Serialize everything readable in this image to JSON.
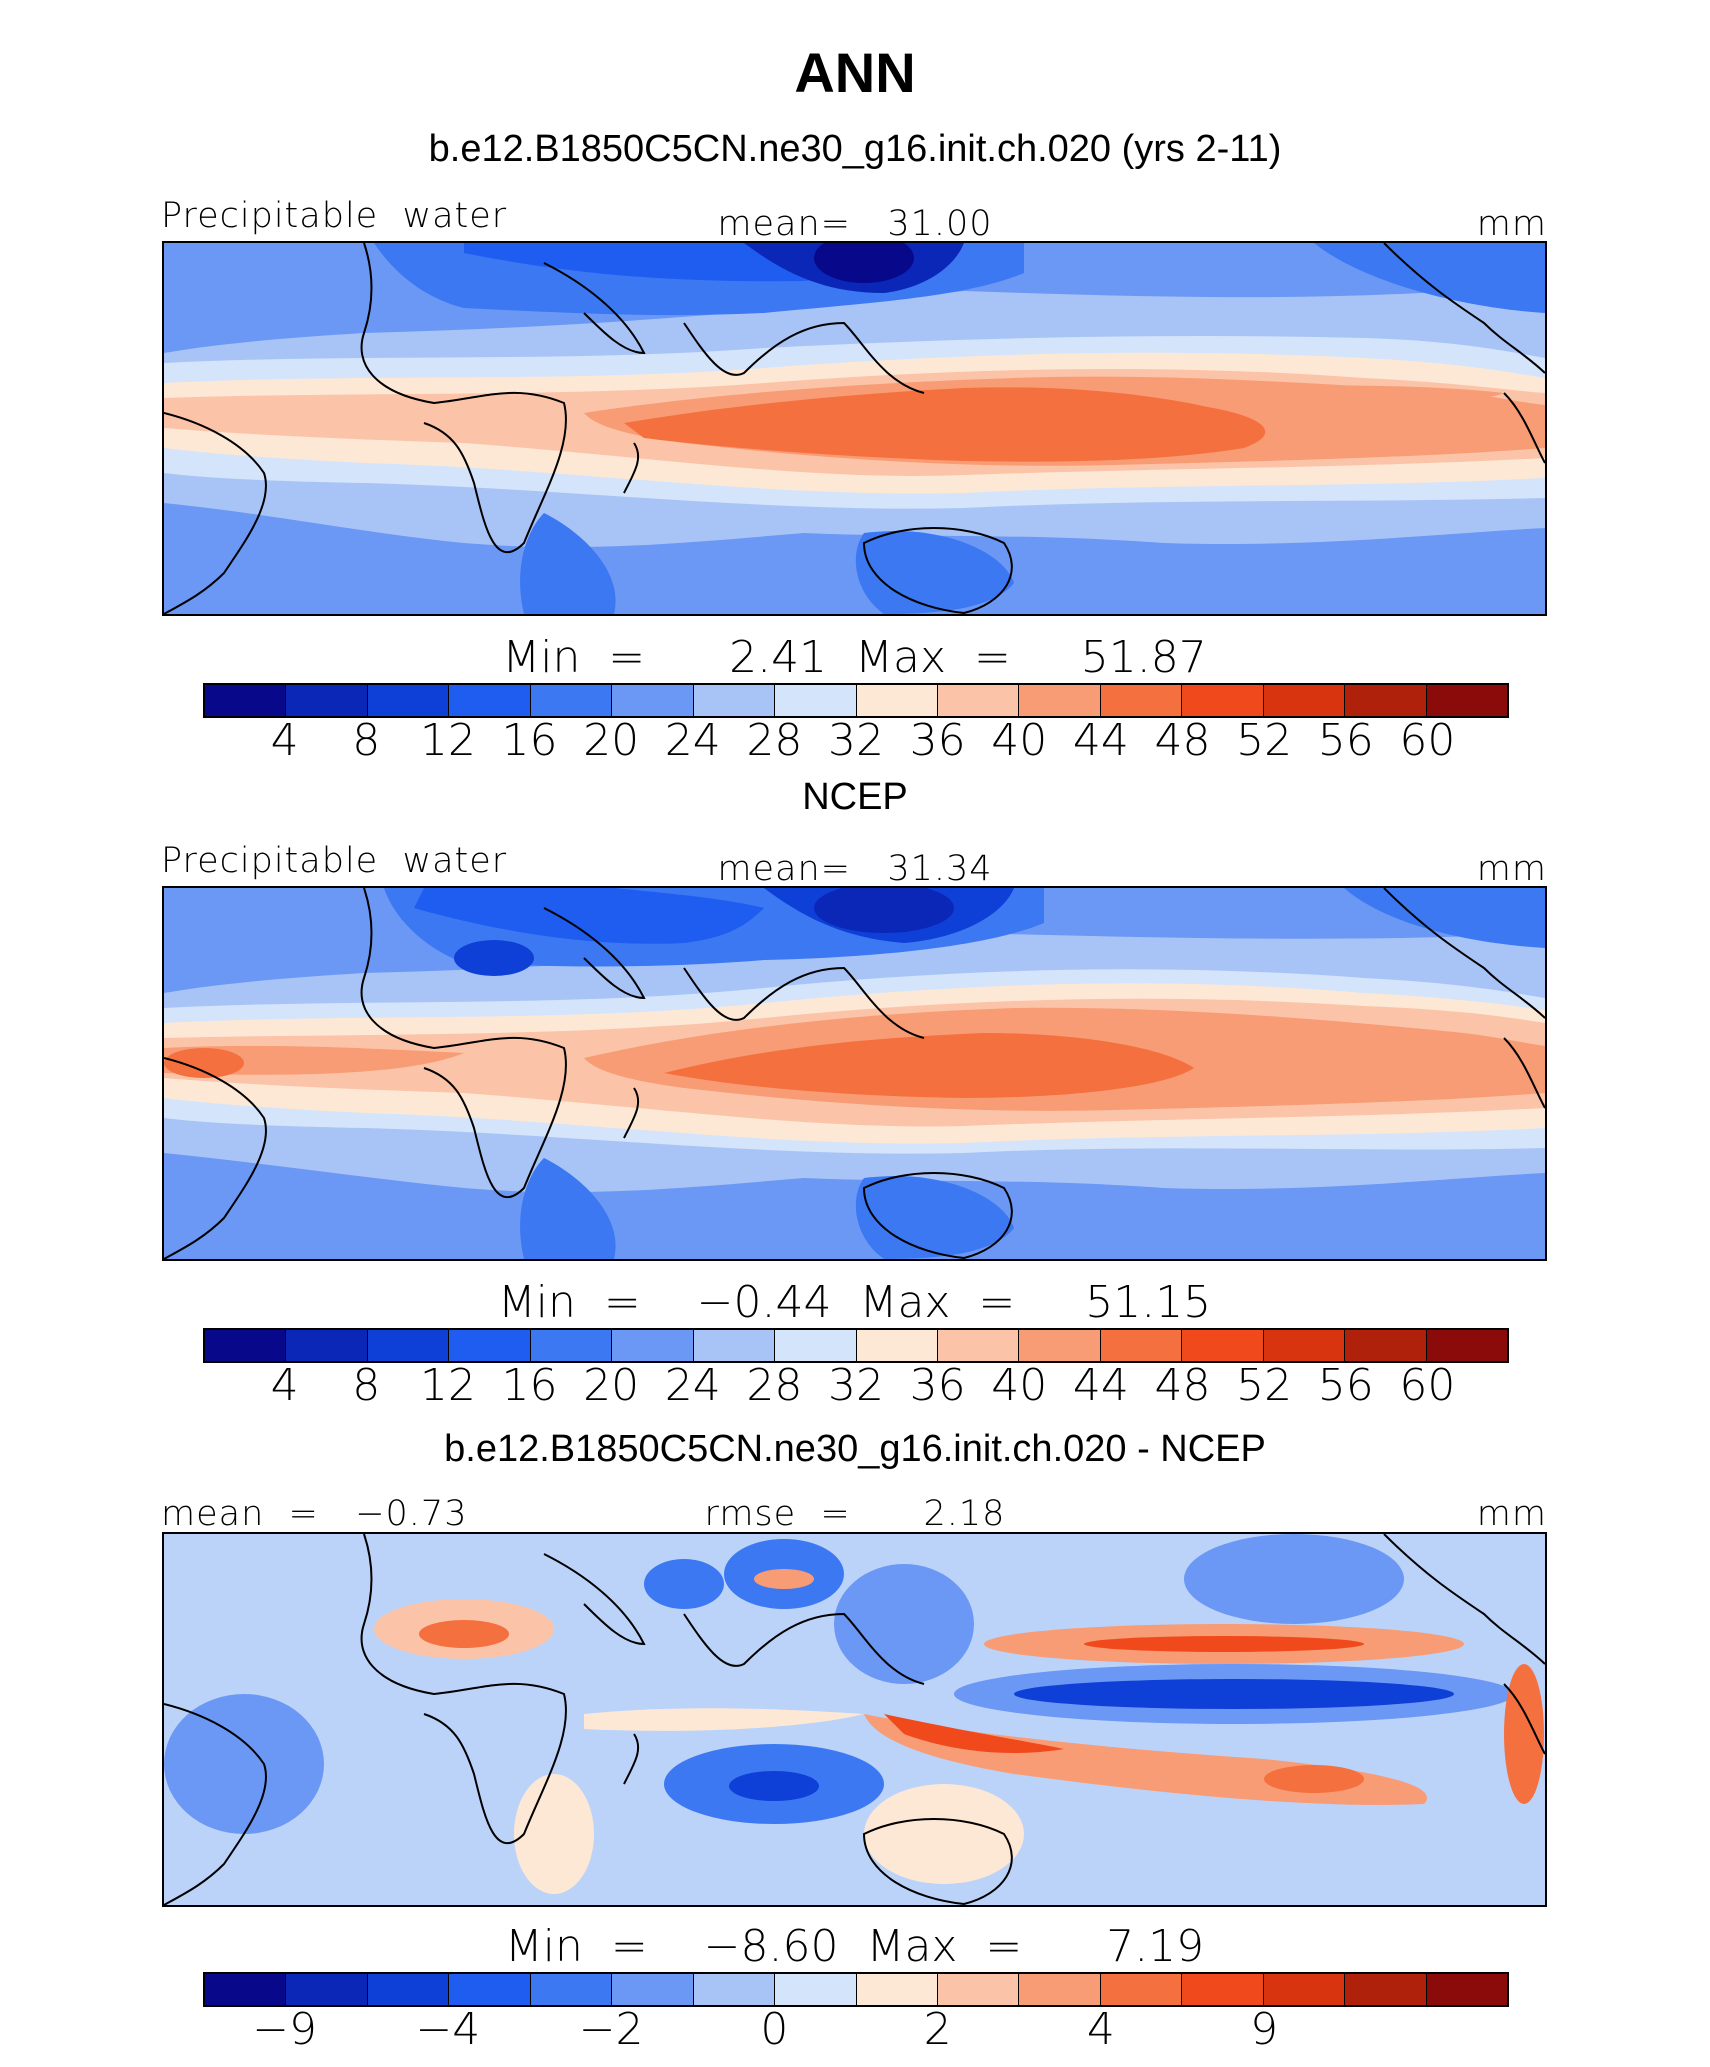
{
  "figure": {
    "title": "ANN",
    "colors": [
      "#08088a",
      "#0a27b8",
      "#0e3fd6",
      "#1f5cf0",
      "#3b78f2",
      "#6b98f4",
      "#a8c4f7",
      "#d4e4fb",
      "#fde8d6",
      "#fbc4a8",
      "#f89c76",
      "#f5703f",
      "#f04a1c",
      "#d93410",
      "#b0210b",
      "#8b0a0a"
    ]
  },
  "panels": [
    {
      "subtitle": "b.e12.B1850C5CN.ne30_g16.init.ch.020 (yrs 2-11)",
      "left_label": "Precipitable  water",
      "center_label": "mean=   31.00",
      "right_label": "mm",
      "stats": "Min  =      2.41  Max  =     51.87",
      "tick_labels": [
        "4",
        "8",
        "12",
        "16",
        "20",
        "24",
        "28",
        "32",
        "36",
        "40",
        "44",
        "48",
        "52",
        "56",
        "60"
      ]
    },
    {
      "subtitle": "NCEP",
      "left_label": "Precipitable  water",
      "center_label": "mean=   31.34",
      "right_label": "mm",
      "stats": "Min  =    −0.44  Max  =     51.15",
      "tick_labels": [
        "4",
        "8",
        "12",
        "16",
        "20",
        "24",
        "28",
        "32",
        "36",
        "40",
        "44",
        "48",
        "52",
        "56",
        "60"
      ]
    },
    {
      "subtitle": "b.e12.B1850C5CN.ne30_g16.init.ch.020 - NCEP",
      "left_label": "mean  =   −0.73",
      "center_label": "rmse  =      2.18",
      "right_label": "mm",
      "stats": "Min  =    −8.60  Max  =      7.19",
      "tick_labels": [
        "−9",
        "",
        "−4",
        "",
        "−2",
        "",
        "0",
        "",
        "2",
        "",
        "4",
        "",
        "9",
        "",
        ""
      ]
    }
  ],
  "chart_data": [
    {
      "type": "heatmap",
      "title": "ANN",
      "subtitle": "b.e12.B1850C5CN.ne30_g16.init.ch.020 (yrs 2-11)",
      "variable": "Precipitable  water",
      "units": "mm",
      "mean": 31.0,
      "min": 2.41,
      "max": 51.87,
      "contour_levels": [
        4,
        8,
        12,
        16,
        20,
        24,
        28,
        32,
        36,
        40,
        44,
        48,
        52,
        56,
        60
      ]
    },
    {
      "type": "heatmap",
      "subtitle": "NCEP",
      "variable": "Precipitable  water",
      "units": "mm",
      "mean": 31.34,
      "min": -0.44,
      "max": 51.15,
      "contour_levels": [
        4,
        8,
        12,
        16,
        20,
        24,
        28,
        32,
        36,
        40,
        44,
        48,
        52,
        56,
        60
      ]
    },
    {
      "type": "heatmap",
      "subtitle": "b.e12.B1850C5CN.ne30_g16.init.ch.020 - NCEP",
      "units": "mm",
      "mean": -0.73,
      "rmse": 2.18,
      "min": -8.6,
      "max": 7.19,
      "tick_labels_shown": [
        -9,
        -4,
        -2,
        0,
        2,
        4,
        9
      ]
    }
  ]
}
